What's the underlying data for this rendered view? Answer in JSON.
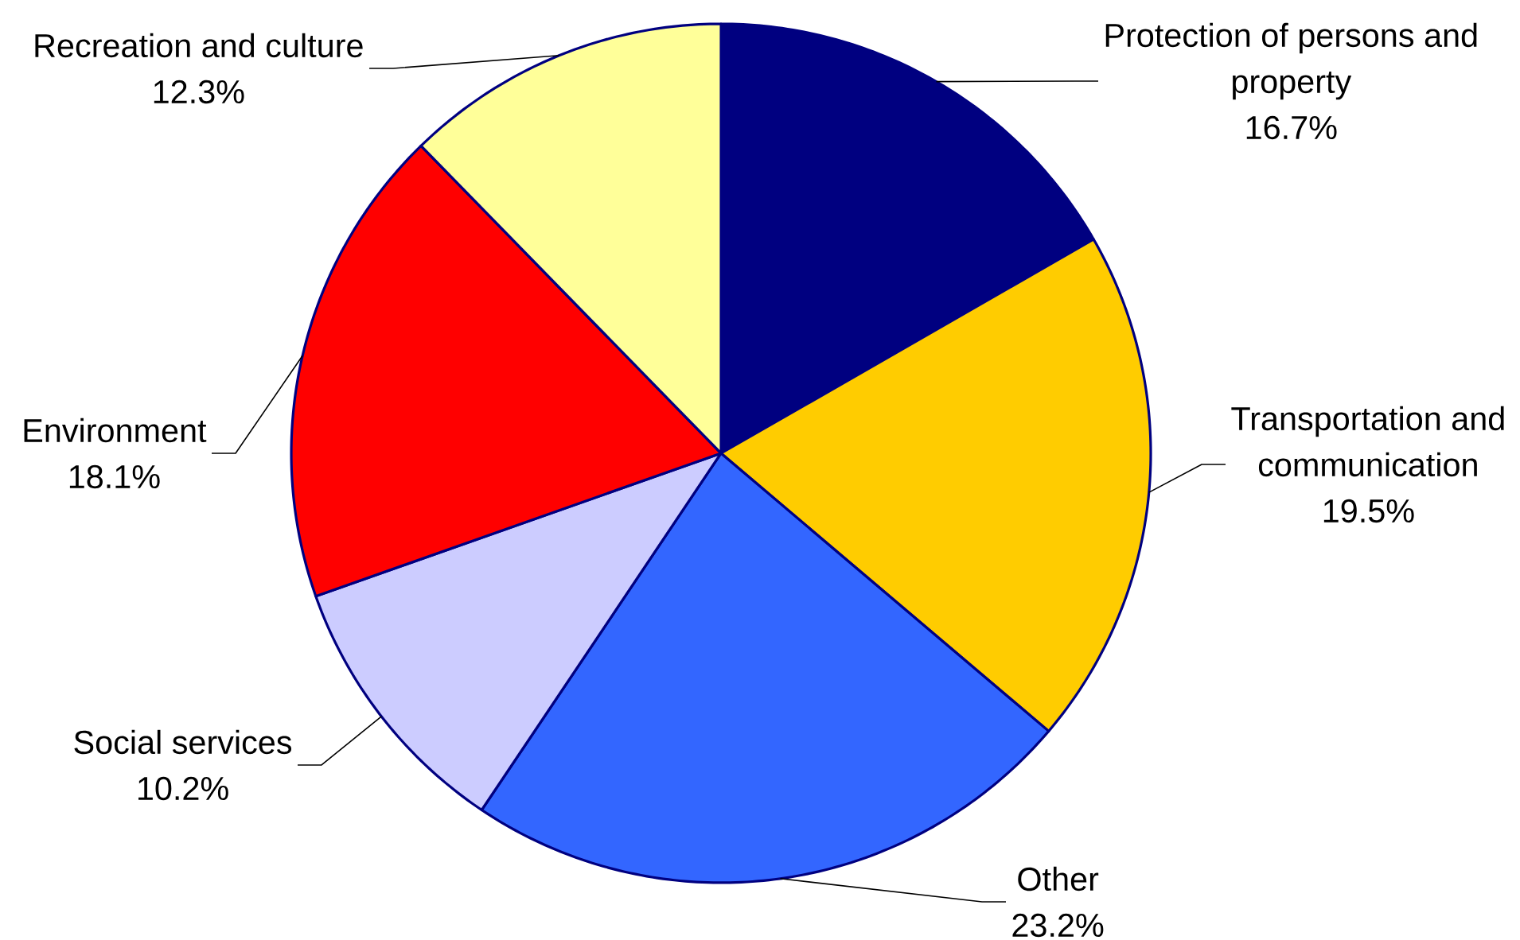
{
  "chart_data": {
    "type": "pie",
    "categories": [
      "Protection of persons and property",
      "Transportation and communication",
      "Other",
      "Social services",
      "Environment",
      "Recreation and culture"
    ],
    "values": [
      16.7,
      19.5,
      23.2,
      10.2,
      18.1,
      12.3
    ],
    "colors": [
      "#000080",
      "#ffcc00",
      "#3366ff",
      "#ccccff",
      "#ff0000",
      "#ffff99"
    ],
    "value_labels": [
      "16.7%",
      "19.5%",
      "23.2%",
      "10.2%",
      "18.1%",
      "12.3%"
    ]
  }
}
